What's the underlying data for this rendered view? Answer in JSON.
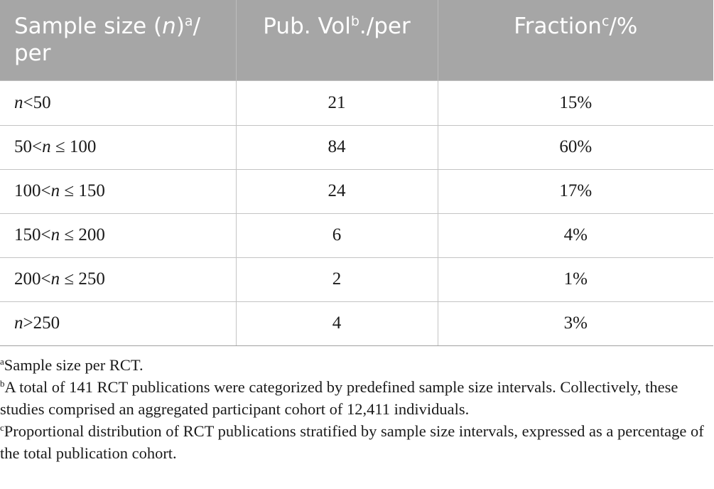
{
  "header": {
    "col1": {
      "text_a": "Sample size (",
      "var": "n",
      "text_b": ")",
      "sup": "a",
      "text_c": "/ per"
    },
    "col2": {
      "text_a": "Pub. Vol",
      "sup": "b",
      "text_b": "./per"
    },
    "col3": {
      "text_a": "Fraction",
      "sup": "c",
      "text_b": "/%"
    }
  },
  "rows": [
    {
      "pre": "",
      "var": "n",
      "post": "<50",
      "pub_vol": "21",
      "fraction": "15%"
    },
    {
      "pre": "50<",
      "var": "n",
      "post": " ≤ 100",
      "pub_vol": "84",
      "fraction": "60%"
    },
    {
      "pre": "100<",
      "var": "n",
      "post": " ≤ 150",
      "pub_vol": "24",
      "fraction": "17%"
    },
    {
      "pre": "150<",
      "var": "n",
      "post": " ≤ 200",
      "pub_vol": "6",
      "fraction": "4%"
    },
    {
      "pre": "200<",
      "var": "n",
      "post": " ≤ 250",
      "pub_vol": "2",
      "fraction": "1%"
    },
    {
      "pre": "",
      "var": "n",
      "post": ">250",
      "pub_vol": "4",
      "fraction": "3%"
    }
  ],
  "footnotes": [
    {
      "mark": "a",
      "text": "Sample size per RCT."
    },
    {
      "mark": "b",
      "text": "A total of 141 RCT publications were categorized by predefined sample size intervals. Collectively, these studies comprised an aggregated participant cohort of 12,411 individuals."
    },
    {
      "mark": "c",
      "text": "Proportional distribution of RCT publications stratified by sample size intervals, expressed as a percentage of the total publication cohort."
    }
  ],
  "colors": {
    "header_bg": "#a6a6a6",
    "header_text": "#ffffff",
    "border": "#c4c4c4"
  }
}
